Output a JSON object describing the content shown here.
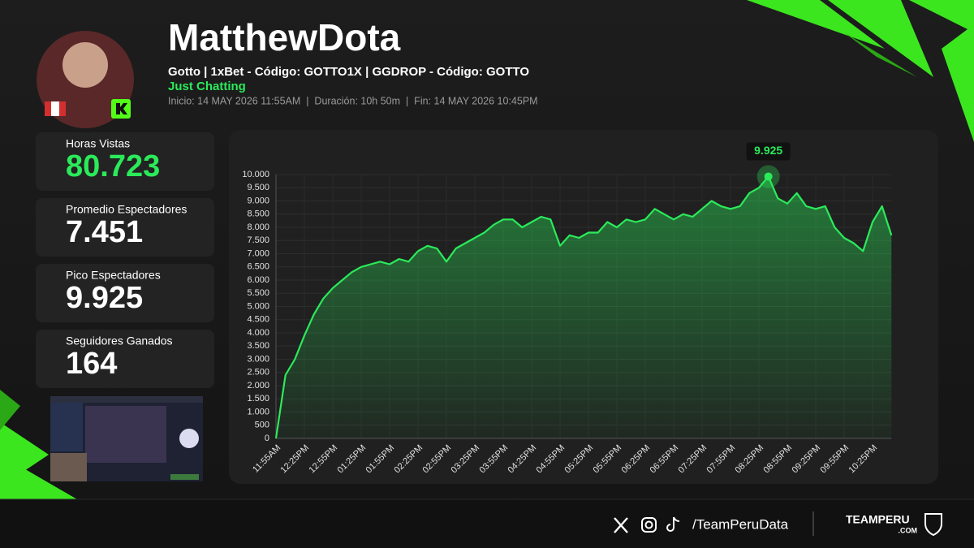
{
  "header": {
    "name": "MatthewDota",
    "subtitle": "Gotto | 1xBet - Código: GOTTO1X | GGDROP - Código: GOTTO",
    "category": "Just Chatting",
    "meta": "Inicio: 14 MAY 2026 11:55AM  |  Duración: 10h 50m  |  Fin: 14 MAY 2026 10:45PM"
  },
  "stats": [
    {
      "label": "Horas Vistas",
      "value": "80.723"
    },
    {
      "label": "Promedio Espectadores",
      "value": "7.451"
    },
    {
      "label": "Pico Espectadores",
      "value": "9.925"
    },
    {
      "label": "Seguidores Ganados",
      "value": "164"
    }
  ],
  "chart_data": {
    "type": "line",
    "categories": [
      "11:55AM",
      null,
      null,
      "12:25PM",
      null,
      null,
      "12:55PM",
      null,
      null,
      "01:25PM",
      null,
      null,
      "01:55PM",
      null,
      null,
      "02:25PM",
      null,
      null,
      "02:55PM",
      null,
      null,
      "03:25PM",
      null,
      null,
      "03:55PM",
      null,
      null,
      "04:25PM",
      null,
      null,
      "04:55PM",
      null,
      null,
      "05:25PM",
      null,
      null,
      "05:55PM",
      null,
      null,
      "06:25PM",
      null,
      null,
      "06:55PM",
      null,
      null,
      "07:25PM",
      null,
      null,
      "07:55PM",
      null,
      null,
      "08:25PM",
      null,
      null,
      "08:55PM",
      null,
      null,
      "09:25PM",
      null,
      null,
      "09:55PM",
      null,
      null,
      "10:25PM",
      null,
      null
    ],
    "values": [
      0,
      2400,
      3000,
      3900,
      4700,
      5300,
      5700,
      6000,
      6300,
      6500,
      6600,
      6700,
      6600,
      6800,
      6700,
      7100,
      7300,
      7200,
      6700,
      7200,
      7400,
      7600,
      7800,
      8100,
      8300,
      8300,
      8000,
      8200,
      8400,
      8300,
      7300,
      7700,
      7600,
      7800,
      7800,
      8200,
      8000,
      8300,
      8200,
      8300,
      8700,
      8500,
      8300,
      8500,
      8400,
      8700,
      9000,
      8800,
      8700,
      8800,
      9300,
      9500,
      9925,
      9100,
      8900,
      9300,
      8800,
      8700,
      8800,
      8000,
      7600,
      7400,
      7100,
      8200,
      8800,
      7700
    ],
    "value_labels": [
      null,
      null,
      null,
      null,
      null,
      null,
      null,
      null,
      null,
      null,
      null,
      null,
      null,
      null,
      null,
      null,
      null,
      null,
      null,
      null,
      null,
      null,
      null,
      null,
      null,
      null,
      null,
      null,
      null,
      null,
      null,
      null,
      null,
      null,
      null,
      null,
      null,
      null,
      null,
      null,
      null,
      null,
      null,
      null,
      null,
      null,
      null,
      null,
      null,
      null,
      null,
      null,
      "9.925",
      null,
      null,
      null,
      null,
      null,
      null,
      null,
      null,
      null,
      null,
      null,
      null,
      null
    ],
    "color": "#2bea5a",
    "ylim": [
      0,
      10000
    ],
    "yticks": [
      0,
      500,
      {
        "value": 1000,
        "label": "1.000"
      },
      {
        "value": 1500,
        "label": "1.500"
      },
      {
        "value": 2000,
        "label": "2.000"
      },
      {
        "value": 2500,
        "label": "2.500"
      },
      {
        "value": 3000,
        "label": "3.000"
      },
      {
        "value": 3500,
        "label": "3.500"
      },
      {
        "value": 4000,
        "label": "4.000"
      },
      {
        "value": 4500,
        "label": "4.500"
      },
      {
        "value": 5000,
        "label": "5.000"
      },
      {
        "value": 5500,
        "label": "5.500"
      },
      {
        "value": 6000,
        "label": "6.000"
      },
      {
        "value": 6500,
        "label": "6.500"
      },
      {
        "value": 7000,
        "label": "7.000"
      },
      {
        "value": 7500,
        "label": "7.500"
      },
      {
        "value": 8000,
        "label": "8.000"
      },
      {
        "value": 8500,
        "label": "8.500"
      },
      {
        "value": 9000,
        "label": "9.000"
      },
      {
        "value": 9500,
        "label": "9.500"
      },
      {
        "value": 10000,
        "label": "10.000"
      }
    ],
    "grid": true
  },
  "footer": {
    "handle": "/TeamPeruData",
    "brand": "TEAMPERU",
    "domain": ".COM"
  }
}
